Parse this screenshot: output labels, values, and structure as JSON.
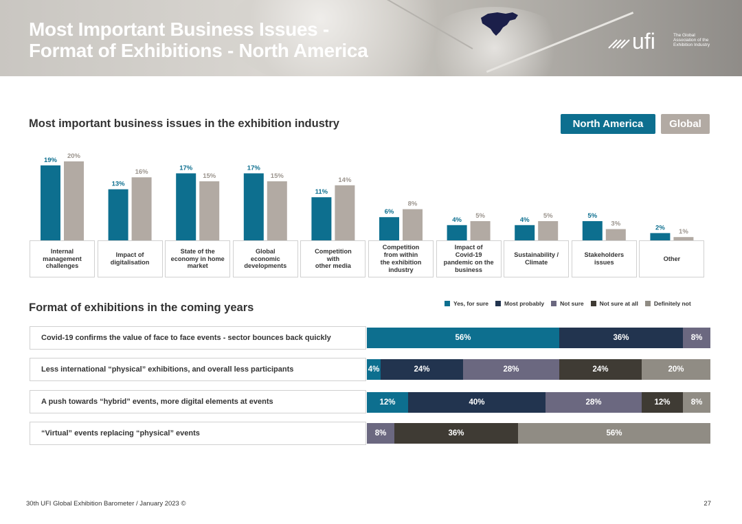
{
  "header": {
    "title_line1": "Most Important Business Issues -",
    "title_line2": "Format of Exhibitions - North America",
    "logo_text": "ufi",
    "logo_tagline": [
      "The Global",
      "Association of the",
      "Exhibition Industry"
    ]
  },
  "colors": {
    "north_america": "#0d6f8f",
    "global": "#b2aaa3",
    "yes_for_sure": "#0d6f8f",
    "most_probably": "#22344f",
    "not_sure": "#6b6880",
    "not_sure_at_all": "#3f3b34",
    "definitely_not": "#908c84"
  },
  "toggle": {
    "north_america_label": "North America",
    "global_label": "Global"
  },
  "section1_title": "Most important business issues in the exhibition industry",
  "section2_title": "Format of exhibitions in the coming years",
  "chart_data": [
    {
      "type": "bar",
      "title": "Most important business issues in the exhibition industry",
      "categories": [
        "Internal management challenges",
        "Impact of digitalisation",
        "State of the economy in home market",
        "Global economic developments",
        "Competition with other media",
        "Competition from within the exhibition industry",
        "Impact of Covid-19 pandemic on the business",
        "Sustainability / Climate",
        "Stakeholders issues",
        "Other"
      ],
      "category_lines": [
        [
          "Internal",
          "management",
          "challenges"
        ],
        [
          "Impact of",
          "digitalisation"
        ],
        [
          "State of the",
          "economy in home",
          "market"
        ],
        [
          "Global",
          "economic",
          "developments"
        ],
        [
          "Competition",
          "with",
          "other media"
        ],
        [
          "Competition",
          "from within",
          "the exhibition",
          "industry"
        ],
        [
          "Impact of",
          "Covid-19",
          "pandemic on the",
          "business"
        ],
        [
          "Sustainability /",
          "Climate"
        ],
        [
          "Stakeholders",
          "issues"
        ],
        [
          "Other"
        ]
      ],
      "series": [
        {
          "name": "North America",
          "values": [
            19,
            13,
            17,
            17,
            11,
            6,
            4,
            4,
            5,
            2
          ]
        },
        {
          "name": "Global",
          "values": [
            20,
            16,
            15,
            15,
            14,
            8,
            5,
            5,
            3,
            1
          ]
        }
      ],
      "unit": "%",
      "ylim": [
        0,
        20
      ]
    },
    {
      "type": "bar",
      "stacked": true,
      "orientation": "horizontal",
      "title": "Format of exhibitions in the coming years",
      "categories": [
        "Covid-19 confirms the value of face to face events - sector bounces back quickly",
        "Less international “physical” exhibitions, and overall less participants",
        "A push towards “hybrid” events, more digital elements at events",
        "“Virtual” events replacing “physical” events"
      ],
      "series": [
        {
          "name": "Yes, for sure",
          "values": [
            56,
            4,
            12,
            0
          ]
        },
        {
          "name": "Most probably",
          "values": [
            36,
            24,
            40,
            0
          ]
        },
        {
          "name": "Not sure",
          "values": [
            8,
            28,
            28,
            8
          ]
        },
        {
          "name": "Not sure at all",
          "values": [
            0,
            24,
            12,
            36
          ]
        },
        {
          "name": "Definitely not",
          "values": [
            0,
            20,
            8,
            56
          ]
        }
      ],
      "unit": "%",
      "legend_position": "top-right"
    }
  ],
  "footer": {
    "text": "30th UFI Global Exhibition Barometer / January 2023 ©",
    "page": "27"
  }
}
